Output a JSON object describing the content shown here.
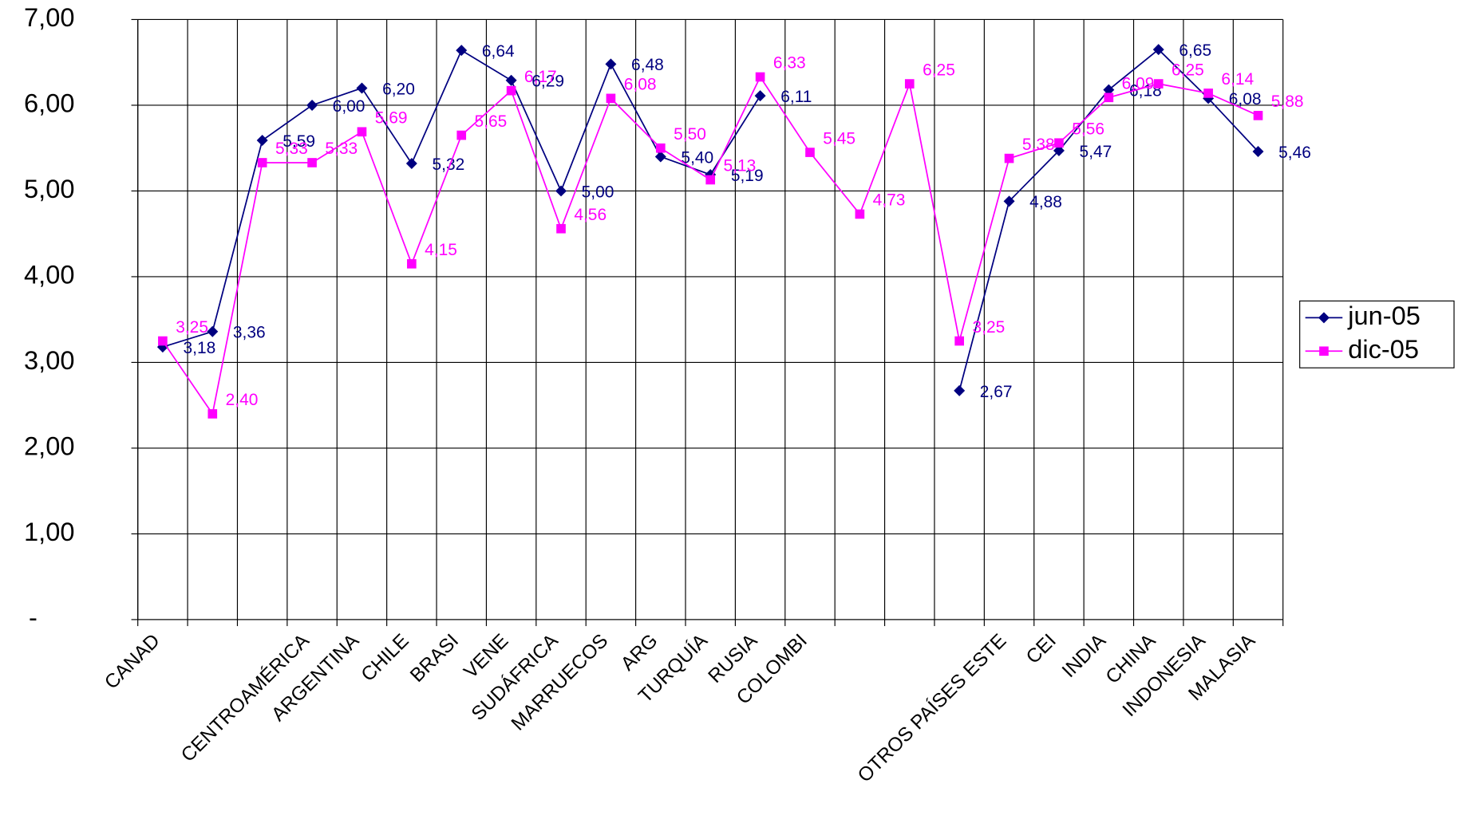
{
  "chart_data": {
    "type": "line",
    "categories": [
      "CANAD",
      null,
      null,
      "CENTROAMÉRICA",
      "ARGENTINA",
      "CHILE",
      "BRASI",
      "VENE",
      "SUDÁFRICA",
      "MARRUECOS",
      "ARG",
      "TURQUÍA",
      "RUSIA",
      "COLOMBI",
      null,
      null,
      null,
      "OTROS PAÍSES ESTE",
      "CEI",
      "INDIA",
      "CHINA",
      "INDONESIA",
      "MALASIA"
    ],
    "series": [
      {
        "name": "jun-05",
        "color": "#000080",
        "values": [
          3.18,
          3.36,
          5.59,
          6.0,
          6.2,
          5.32,
          6.64,
          6.29,
          5.0,
          6.48,
          5.4,
          5.19,
          6.11,
          null,
          null,
          null,
          2.67,
          4.88,
          5.47,
          6.18,
          6.65,
          6.08,
          5.46
        ],
        "value_labels": [
          "3,18",
          "3,36",
          "5,59",
          "6,00",
          "6,20",
          "5,32",
          "6,64",
          "6,29",
          "5,00",
          "6,48",
          "5,40",
          "5,19",
          "6,11",
          null,
          null,
          null,
          "2,67",
          "4,88",
          "5,47",
          "6,18",
          "6,65",
          "6,08",
          "5,46"
        ]
      },
      {
        "name": "dic-05",
        "color": "#ff00ff",
        "values": [
          3.25,
          2.4,
          5.33,
          5.33,
          5.69,
          4.15,
          5.65,
          6.17,
          4.56,
          6.08,
          5.5,
          5.13,
          6.33,
          5.45,
          4.73,
          6.25,
          3.25,
          5.38,
          5.56,
          6.09,
          6.25,
          6.14,
          5.88
        ],
        "value_labels": [
          "3,25",
          "2,40",
          "5,33",
          "5,33",
          "5,69",
          "4,15",
          "5,65",
          "6,17",
          "4,56",
          "6,08",
          "5,50",
          "5,13",
          "6,33",
          "5,45",
          "4,73",
          "6,25",
          "3,25",
          "5,38",
          "5,56",
          "6,09",
          "6,25",
          "6,14",
          "5,88"
        ]
      }
    ],
    "ylim": [
      0,
      7
    ],
    "yticks": [
      {
        "value": 0,
        "label": "-"
      },
      {
        "value": 1,
        "label": "1,00"
      },
      {
        "value": 2,
        "label": "2,00"
      },
      {
        "value": 3,
        "label": "3,00"
      },
      {
        "value": 4,
        "label": "4,00"
      },
      {
        "value": 5,
        "label": "5,00"
      },
      {
        "value": 6,
        "label": "6,00"
      },
      {
        "value": 7,
        "label": "7,00"
      }
    ],
    "grid": true,
    "legend": "right"
  }
}
